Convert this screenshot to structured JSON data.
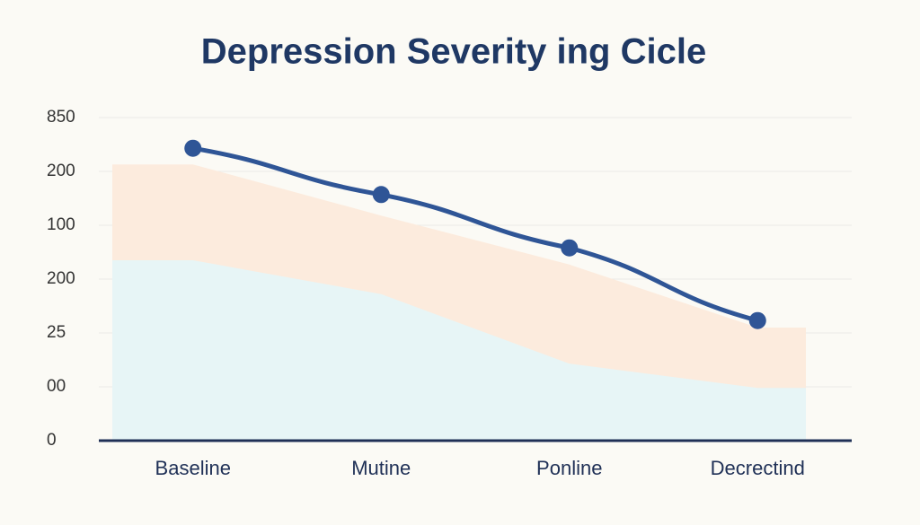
{
  "chart_data": {
    "type": "line",
    "title": "Depression Severity ing Cicle",
    "categories": [
      "Baseline",
      "Mutine",
      "Ponline",
      "Decrectind"
    ],
    "series": [
      {
        "color": "#2f5596",
        "values": [
          5.43,
          4.57,
          3.58,
          2.23
        ]
      }
    ],
    "areas": [
      {
        "color": "#fcebdd",
        "values": [
          5.13,
          4.18,
          3.27,
          2.1
        ]
      },
      {
        "color": "#e7f5f6",
        "values": [
          3.35,
          2.72,
          1.43,
          0.98
        ]
      }
    ],
    "ylim": [
      0,
      6
    ],
    "yticks": [
      0,
      {
        "value": 1,
        "label": "00"
      },
      {
        "value": 2,
        "label": "25"
      },
      {
        "value": 3,
        "label": "200"
      },
      {
        "value": 4,
        "label": "100"
      },
      {
        "value": 5,
        "label": "200"
      },
      {
        "value": 6,
        "label": "850"
      }
    ],
    "grid": true
  }
}
